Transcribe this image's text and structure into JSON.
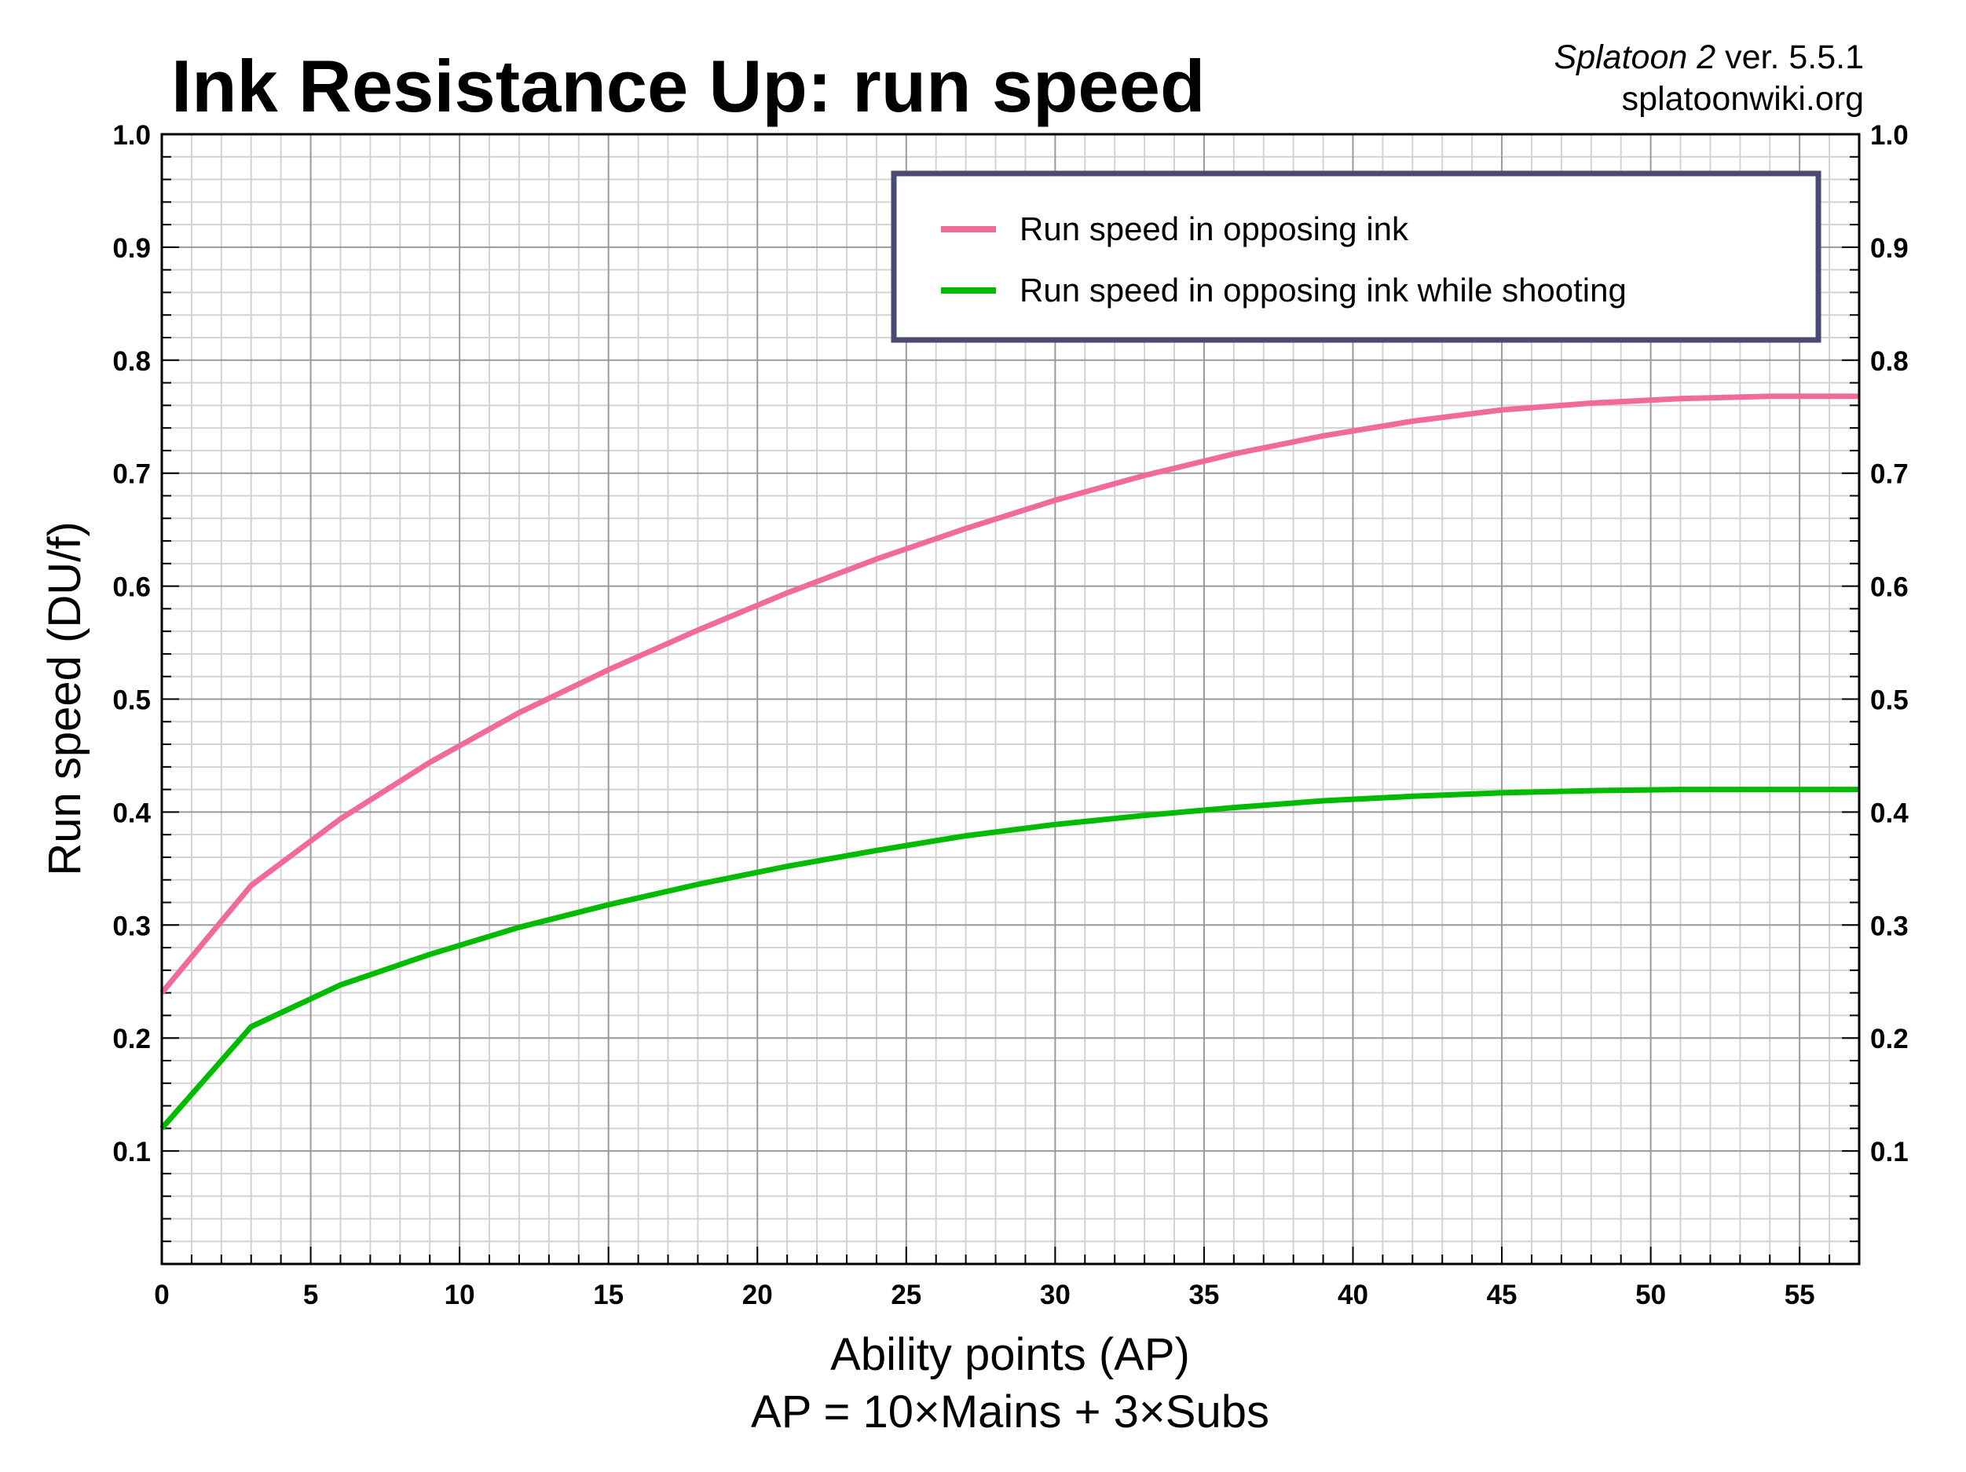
{
  "chart_data": {
    "type": "line",
    "title": "Ink Resistance Up: run speed",
    "credit": {
      "game_italic": "Splatoon 2",
      "version": " ver. 5.5.1",
      "site": "splatoonwiki.org"
    },
    "xlabel": "Ability points (AP)",
    "xlabel_sub": "AP = 10×Mains + 3×Subs",
    "ylabel": "Run speed (DU/f)",
    "xlim": [
      0,
      57
    ],
    "ylim": [
      0,
      1.0
    ],
    "x_ticks": [
      0,
      5,
      10,
      15,
      20,
      25,
      30,
      35,
      40,
      45,
      50,
      55
    ],
    "y_ticks": [
      0.1,
      0.2,
      0.3,
      0.4,
      0.5,
      0.6,
      0.7,
      0.8,
      0.9,
      1.0
    ],
    "y_tick_labels": [
      "0.1",
      "0.2",
      "0.3",
      "0.4",
      "0.5",
      "0.6",
      "0.7",
      "0.8",
      "0.9",
      "1.0"
    ],
    "grid": true,
    "legend_position": "top-right",
    "series": [
      {
        "name": "Run speed in opposing ink",
        "color": "#f06b9b",
        "x": [
          0,
          3,
          6,
          9,
          12,
          15,
          18,
          21,
          24,
          27,
          30,
          33,
          36,
          39,
          42,
          45,
          48,
          51,
          54,
          57
        ],
        "values": [
          0.24,
          0.335,
          0.394,
          0.444,
          0.488,
          0.526,
          0.561,
          0.594,
          0.624,
          0.651,
          0.676,
          0.698,
          0.717,
          0.733,
          0.746,
          0.756,
          0.762,
          0.766,
          0.768,
          0.768
        ]
      },
      {
        "name": "Run speed in opposing ink while shooting",
        "color": "#00bb00",
        "x": [
          0,
          3,
          6,
          9,
          12,
          15,
          18,
          21,
          24,
          27,
          30,
          33,
          36,
          39,
          42,
          45,
          48,
          51,
          54,
          57
        ],
        "values": [
          0.12,
          0.21,
          0.247,
          0.274,
          0.298,
          0.318,
          0.336,
          0.352,
          0.366,
          0.379,
          0.389,
          0.397,
          0.404,
          0.41,
          0.414,
          0.417,
          0.419,
          0.42,
          0.42,
          0.42
        ]
      }
    ]
  }
}
